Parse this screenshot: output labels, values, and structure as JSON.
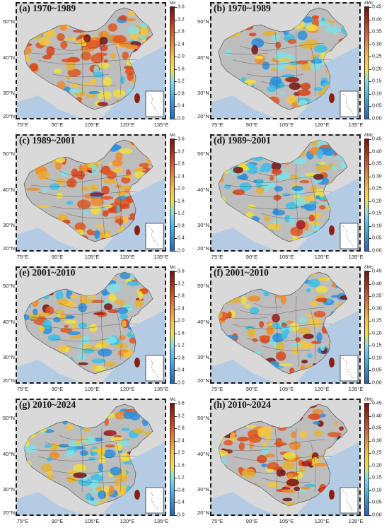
{
  "panels": [
    {
      "id": "a",
      "title": "(a) 1970~1989",
      "colorbar": {
        "title": "Mc",
        "ticks": [
          "3.6",
          "3.2",
          "2.8",
          "2.4",
          "2.0",
          "1.6",
          "1.2",
          "0.8",
          "0.4",
          "0.0"
        ]
      },
      "palette": "mc",
      "fill_mix": {
        "orange": 0.45,
        "yellow": 0.35,
        "cyan": 0.15,
        "darkred": 0.05
      },
      "seed": 11
    },
    {
      "id": "b",
      "title": "(b) 1970~1989",
      "colorbar": {
        "title": "δMc",
        "ticks": [
          "0.45",
          "0.40",
          "0.35",
          "0.30",
          "0.25",
          "0.20",
          "0.15",
          "0.10",
          "0.05",
          "0.00"
        ]
      },
      "palette": "dmc",
      "fill_mix": {
        "cyan": 0.5,
        "yellow": 0.3,
        "orange": 0.15,
        "darkred": 0.05
      },
      "seed": 12
    },
    {
      "id": "c",
      "title": "(c) 1989~2001",
      "colorbar": {
        "title": "Mc",
        "ticks": [
          "3.6",
          "3.2",
          "2.8",
          "2.4",
          "2.0",
          "1.6",
          "1.2",
          "0.8",
          "0.4",
          "0.0"
        ]
      },
      "palette": "mc",
      "fill_mix": {
        "orange": 0.5,
        "yellow": 0.3,
        "cyan": 0.15,
        "darkred": 0.05
      },
      "seed": 21
    },
    {
      "id": "d",
      "title": "(d) 1989~2001",
      "colorbar": {
        "title": "δMc",
        "ticks": [
          "0.45",
          "0.40",
          "0.35",
          "0.30",
          "0.25",
          "0.20",
          "0.15",
          "0.10",
          "0.05",
          "0.00"
        ]
      },
      "palette": "dmc",
      "fill_mix": {
        "cyan": 0.55,
        "yellow": 0.25,
        "orange": 0.15,
        "darkred": 0.05
      },
      "seed": 22
    },
    {
      "id": "e",
      "title": "(e) 2001~2010",
      "colorbar": {
        "title": "Mc",
        "ticks": [
          "3.6",
          "3.2",
          "2.8",
          "2.4",
          "2.0",
          "1.6",
          "1.2",
          "0.8",
          "0.4",
          "0.0"
        ]
      },
      "palette": "mc",
      "fill_mix": {
        "cyan": 0.45,
        "yellow": 0.35,
        "orange": 0.15,
        "darkred": 0.05
      },
      "seed": 31
    },
    {
      "id": "f",
      "title": "(f) 2001~2010",
      "colorbar": {
        "title": "δMc",
        "ticks": [
          "0.45",
          "0.40",
          "0.35",
          "0.30",
          "0.25",
          "0.20",
          "0.15",
          "0.10",
          "0.05",
          "0.00"
        ]
      },
      "palette": "dmc",
      "fill_mix": {
        "cyan": 0.4,
        "yellow": 0.3,
        "orange": 0.25,
        "darkred": 0.05
      },
      "seed": 32
    },
    {
      "id": "g",
      "title": "(g) 2010~2024",
      "colorbar": {
        "title": "Mc",
        "ticks": [
          "3.6",
          "3.2",
          "2.8",
          "2.4",
          "2.0",
          "1.6",
          "1.2",
          "0.8",
          "0.4",
          "0.0"
        ]
      },
      "palette": "mc",
      "fill_mix": {
        "cyan": 0.5,
        "yellow": 0.35,
        "orange": 0.12,
        "darkred": 0.03
      },
      "seed": 41
    },
    {
      "id": "h",
      "title": "(h) 2010~2024",
      "colorbar": {
        "title": "δMc",
        "ticks": [
          "0.45",
          "0.40",
          "0.35",
          "0.30",
          "0.25",
          "0.20",
          "0.15",
          "0.10",
          "0.05",
          "0.00"
        ]
      },
      "palette": "dmc",
      "fill_mix": {
        "orange": 0.45,
        "yellow": 0.25,
        "darkred": 0.2,
        "cyan": 0.1
      },
      "seed": 42
    }
  ],
  "lat_labels": [
    "50°N",
    "40°N",
    "30°N",
    "20°N"
  ],
  "lon_labels": [
    "75°E",
    "90°E",
    "105°E",
    "120°E",
    "135°E"
  ],
  "colors": {
    "gradient": [
      "#7a1010",
      "#b5261a",
      "#e0561f",
      "#f08a2a",
      "#f6c43a",
      "#f0e040",
      "#7fe0e8",
      "#3cc0e8",
      "#2a8fe0",
      "#1e64c8"
    ],
    "sea": "#b4cbe4",
    "land_grey": "#c9c9c9",
    "frame": "#1a1a1a"
  }
}
